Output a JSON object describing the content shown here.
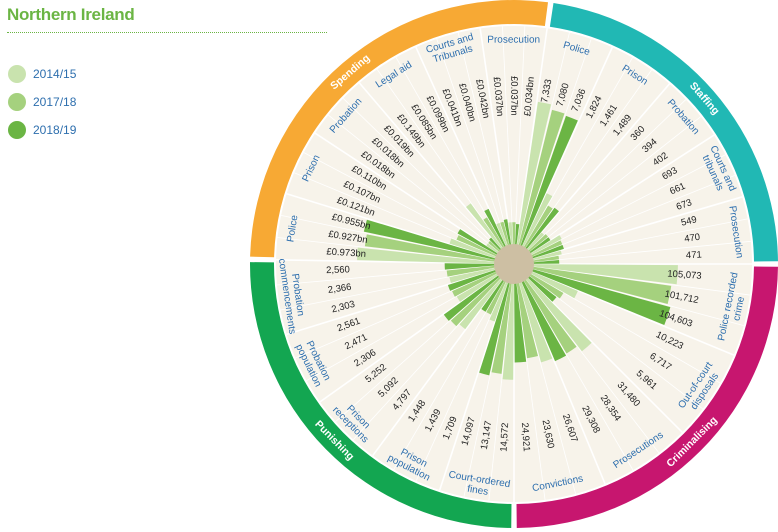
{
  "title": "Northern Ireland",
  "legend": [
    {
      "label": "2014/15",
      "color": "#c9e3ae"
    },
    {
      "label": "2017/18",
      "color": "#a5d17e"
    },
    {
      "label": "2018/19",
      "color": "#6bb544"
    }
  ],
  "colors": {
    "Spending": "#f7a934",
    "Staffing": "#21b8b4",
    "Criminalising": "#c7166f",
    "Punishing": "#13a651",
    "background": "#f7f3ea",
    "hub": "#cdbfa3",
    "segment_text": "#2e6fae"
  },
  "chart_data": {
    "type": "radial-bar",
    "series": [
      {
        "name": "2014/15"
      },
      {
        "name": "2017/18"
      },
      {
        "name": "2018/19"
      }
    ],
    "groups": [
      {
        "name": "Spending",
        "segments": [
          {
            "label": "Police",
            "values": [
              "£0.973bn",
              "£0.927bn",
              "£0.955bn"
            ],
            "share": [
              0.82,
              0.78,
              0.8
            ]
          },
          {
            "label": "Prison",
            "values": [
              "£0.121bn",
              "£0.107bn",
              "£0.110bn"
            ],
            "share": [
              0.3,
              0.27,
              0.28
            ]
          },
          {
            "label": "Probation",
            "values": [
              "£0.018bn",
              "£0.018bn",
              "£0.019bn"
            ],
            "share": [
              0.1,
              0.1,
              0.11
            ]
          },
          {
            "label": "Legal aid",
            "values": [
              "£0.149bn",
              "£0.085bn",
              "£0.099bn"
            ],
            "share": [
              0.34,
              0.22,
              0.26
            ]
          },
          {
            "label": "Courts and Tribunals",
            "values": [
              "£0.041bn",
              "£0.040bn",
              "£0.042bn"
            ],
            "share": [
              0.16,
              0.16,
              0.17
            ]
          },
          {
            "label": "Prosecution",
            "values": [
              "£0.037bn",
              "£0.037bn",
              "£0.034bn"
            ],
            "share": [
              0.15,
              0.15,
              0.14
            ]
          }
        ]
      },
      {
        "name": "Staffing",
        "segments": [
          {
            "label": "Police",
            "values": [
              "7,333",
              "7,080",
              "7,036"
            ],
            "share": [
              0.86,
              0.83,
              0.82
            ]
          },
          {
            "label": "Prison",
            "values": [
              "1,824",
              "1,461",
              "1,489"
            ],
            "share": [
              0.36,
              0.3,
              0.31
            ]
          },
          {
            "label": "Probation",
            "values": [
              "360",
              "394",
              "402"
            ],
            "share": [
              0.15,
              0.16,
              0.16
            ]
          },
          {
            "label": "Courts and tribunals",
            "values": [
              "693",
              "661",
              "673"
            ],
            "share": [
              0.22,
              0.21,
              0.21
            ]
          },
          {
            "label": "Prosecution",
            "values": [
              "549",
              "470",
              "471"
            ],
            "share": [
              0.19,
              0.17,
              0.17
            ]
          }
        ]
      },
      {
        "name": "Criminalising",
        "segments": [
          {
            "label": "Police recorded crime",
            "values": [
              "105,073",
              "101,712",
              "104,603"
            ],
            "share": [
              0.86,
              0.83,
              0.85
            ]
          },
          {
            "label": "Out-of-court disposals",
            "values": [
              "10,223",
              "6,717",
              "5,961"
            ],
            "share": [
              0.31,
              0.24,
              0.22
            ]
          },
          {
            "label": "Prosecutions",
            "values": [
              "31,480",
              "28,354",
              "29,308"
            ],
            "share": [
              0.55,
              0.51,
              0.52
            ]
          },
          {
            "label": "Convictions",
            "values": [
              "26,607",
              "23,630",
              "24,921"
            ],
            "share": [
              0.5,
              0.46,
              0.48
            ]
          }
        ]
      },
      {
        "name": "Punishing",
        "segments": [
          {
            "label": "Court-ordered fines",
            "values": [
              "14,572",
              "13,147",
              "14,097"
            ],
            "share": [
              0.58,
              0.55,
              0.57
            ]
          },
          {
            "label": "Prison population",
            "values": [
              "1,709",
              "1,439",
              "1,448"
            ],
            "share": [
              0.26,
              0.23,
              0.23
            ]
          },
          {
            "label": "Prison receptions",
            "values": [
              "4,797",
              "5,092",
              "5,252"
            ],
            "share": [
              0.38,
              0.4,
              0.41
            ]
          },
          {
            "label": "Probation population",
            "values": [
              "2,306",
              "2,471",
              "2,561"
            ],
            "share": [
              0.29,
              0.3,
              0.31
            ]
          },
          {
            "label": "Probation commencements",
            "values": [
              "2,303",
              "2,366",
              "2,560"
            ],
            "share": [
              0.29,
              0.3,
              0.31
            ]
          }
        ]
      }
    ]
  }
}
